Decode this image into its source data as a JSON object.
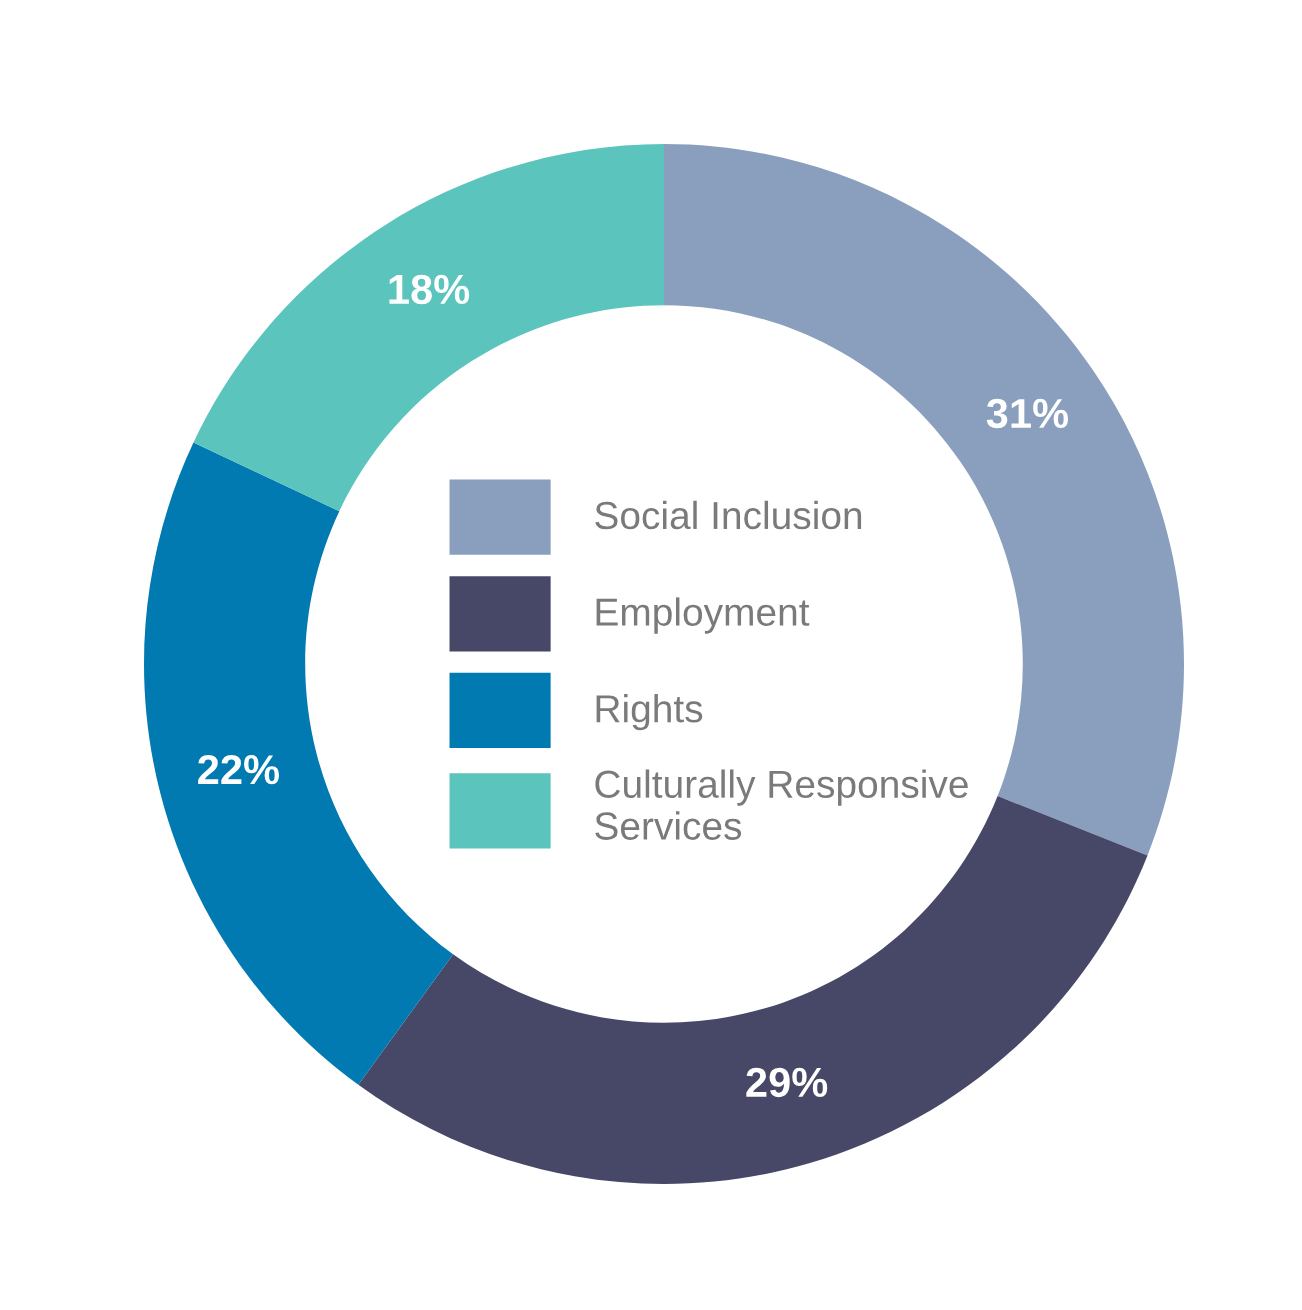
{
  "chart_data": {
    "type": "donut",
    "categories": [
      "Social Inclusion",
      "Employment",
      "Rights",
      "Culturally Responsive Services"
    ],
    "values": [
      31,
      29,
      22,
      18
    ],
    "colors": [
      "#8a9fbd",
      "#474767",
      "#007ab0",
      "#5bc4bd"
    ],
    "value_labels": [
      "31%",
      "29%",
      "22%",
      "18%"
    ],
    "legend": "center"
  }
}
